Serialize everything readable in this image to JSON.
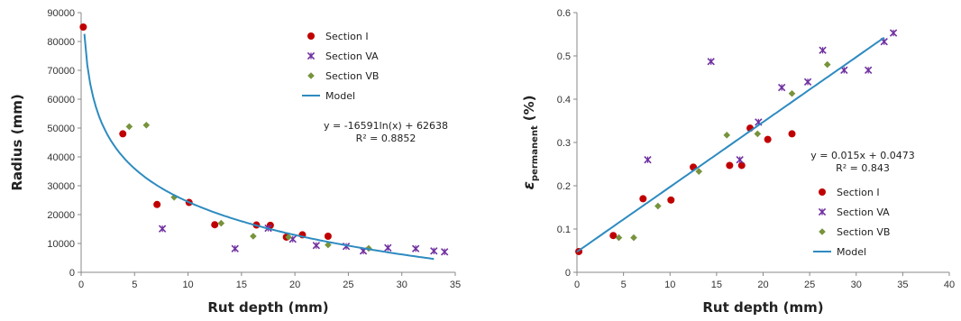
{
  "colors": {
    "section_i": "#c00000",
    "section_va": "#7030a0",
    "section_vb": "#77933c",
    "model": "#2e8bc0",
    "axis": "#888888"
  },
  "chart_data": [
    {
      "type": "scatter",
      "title": "",
      "xlabel": "Rut depth (mm)",
      "ylabel": "Radius (mm)",
      "xlim": [
        0,
        35
      ],
      "ylim": [
        0,
        90000
      ],
      "xticks": [
        0,
        5,
        10,
        15,
        20,
        25,
        30,
        35
      ],
      "yticks": [
        0,
        10000,
        20000,
        30000,
        40000,
        50000,
        60000,
        70000,
        80000,
        90000
      ],
      "grid": false,
      "legend_position": "top-right",
      "equation": "y = -16591ln(x) + 62638",
      "r_squared": "R² = 0.8852",
      "series": [
        {
          "name": "Section I",
          "marker": "circle",
          "color_key": "section_i",
          "x": [
            0.2,
            3.9,
            7.1,
            10.1,
            12.5,
            16.4,
            17.7,
            19.2,
            20.7,
            23.1
          ],
          "y": [
            85000,
            48000,
            23500,
            24200,
            16500,
            16400,
            16300,
            12200,
            13000,
            12500
          ]
        },
        {
          "name": "Section VA",
          "marker": "x",
          "color_key": "section_va",
          "x": [
            7.6,
            14.4,
            17.5,
            19.8,
            22.0,
            24.8,
            26.4,
            28.7,
            31.3,
            33.0,
            34.0
          ],
          "y": [
            15100,
            8200,
            15300,
            11500,
            9300,
            9000,
            7400,
            8500,
            8200,
            7400,
            7100
          ]
        },
        {
          "name": "Section VB",
          "marker": "diamond",
          "color_key": "section_vb",
          "x": [
            4.5,
            6.1,
            8.7,
            13.1,
            16.1,
            19.4,
            23.1,
            26.9
          ],
          "y": [
            50500,
            51000,
            26000,
            17000,
            12500,
            12200,
            9500,
            8300
          ]
        },
        {
          "name": "Model",
          "marker": "line",
          "color_key": "model",
          "fit": "log",
          "a": -16591,
          "b": 62638,
          "x_range": [
            0.3,
            33
          ]
        }
      ]
    },
    {
      "type": "scatter",
      "title": "",
      "xlabel": "Rut depth (mm)",
      "ylabel": "ε",
      "ylabel_sub": "permanent",
      "ylabel_unit": "(%)",
      "xlim": [
        0,
        40
      ],
      "ylim": [
        0,
        0.6
      ],
      "xticks": [
        0,
        5,
        10,
        15,
        20,
        25,
        30,
        35,
        40
      ],
      "yticks": [
        0,
        0.1,
        0.2,
        0.3,
        0.4,
        0.5,
        0.6
      ],
      "grid": false,
      "legend_position": "bottom-center",
      "equation": "y = 0.015x + 0.0473",
      "r_squared": "R² = 0.843",
      "series": [
        {
          "name": "Section I",
          "marker": "circle",
          "color_key": "section_i",
          "x": [
            0.2,
            3.9,
            7.1,
            10.1,
            12.5,
            16.4,
            17.7,
            18.6,
            20.5,
            23.1
          ],
          "y": [
            0.048,
            0.085,
            0.17,
            0.167,
            0.243,
            0.247,
            0.247,
            0.333,
            0.307,
            0.32
          ]
        },
        {
          "name": "Section VA",
          "marker": "x",
          "color_key": "section_va",
          "x": [
            7.6,
            14.4,
            17.5,
            19.5,
            22.0,
            24.8,
            26.4,
            28.7,
            31.3,
            33.0,
            34.0
          ],
          "y": [
            0.26,
            0.487,
            0.26,
            0.347,
            0.427,
            0.44,
            0.513,
            0.467,
            0.467,
            0.533,
            0.553
          ]
        },
        {
          "name": "Section VB",
          "marker": "diamond",
          "color_key": "section_vb",
          "x": [
            4.5,
            6.1,
            8.7,
            13.1,
            16.1,
            19.4,
            23.1,
            26.9
          ],
          "y": [
            0.08,
            0.08,
            0.153,
            0.233,
            0.317,
            0.32,
            0.413,
            0.48
          ]
        },
        {
          "name": "Model",
          "marker": "line",
          "color_key": "model",
          "fit": "linear",
          "a": 0.015,
          "b": 0.0473,
          "x_range": [
            0,
            33
          ]
        }
      ]
    }
  ]
}
